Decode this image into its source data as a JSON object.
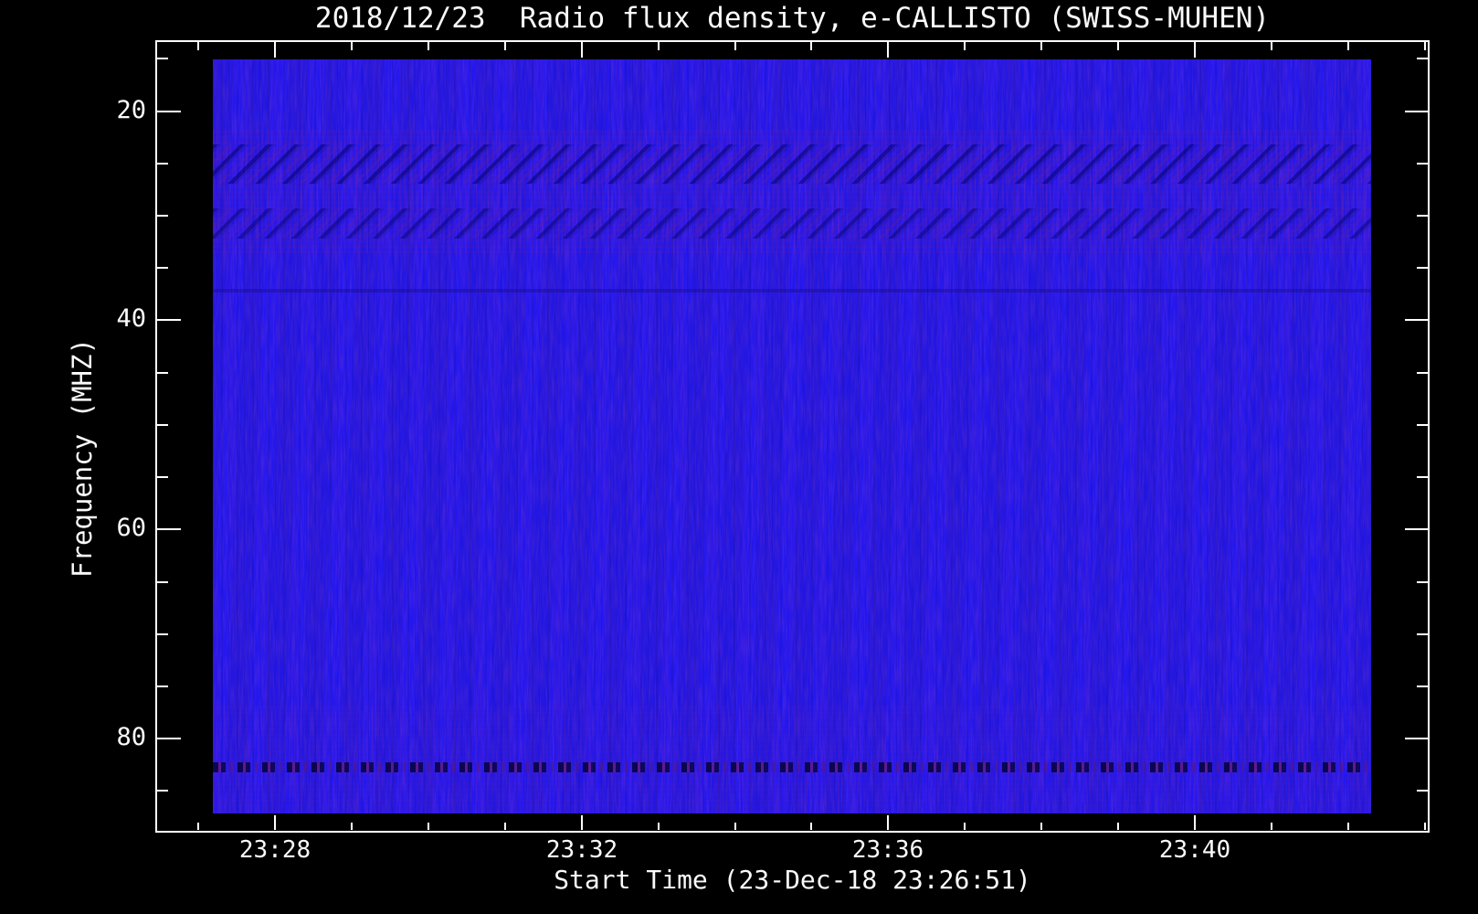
{
  "page": {
    "background": "#000000"
  },
  "chart_data": {
    "type": "heatmap",
    "subtype": "radio-spectrogram",
    "title": "2018/12/23  Radio flux density, e-CALLISTO (SWISS-MUHEN)",
    "xlabel": "Start Time (23-Dec-18 23:26:51)",
    "ylabel": "Frequency (MHZ)",
    "grid": false,
    "legend": "none",
    "x_axis": {
      "label": "Start Time (23-Dec-18 23:26:51)",
      "major_tick_labels": [
        "23:28",
        "23:32",
        "23:36",
        "23:40"
      ],
      "major_tick_minutes": [
        28,
        32,
        36,
        40
      ],
      "minor_tick_step_minutes": 1,
      "range_minutes": [
        26.45,
        43.05
      ]
    },
    "y_axis": {
      "label": "Frequency (MHZ)",
      "major_ticks": [
        20,
        40,
        60,
        80
      ],
      "minor_tick_step": 5,
      "range_mhz": [
        13.3,
        88.9
      ],
      "direction": "increasing-downward"
    },
    "image_extent": {
      "time_span": [
        "23:26:51",
        "23:42:20"
      ],
      "freq_span_mhz": [
        15.0,
        87.2
      ]
    },
    "colormap_note": "uniform bright blue (low flux) with darker navy and purple RFI features",
    "features": [
      {
        "name": "purple-speckle-upper",
        "kind": "speckle",
        "freq_mhz": [
          21.8,
          33.6
        ],
        "opacity": 0.8,
        "desc": "purple speckled interference region around the shortwave bands"
      },
      {
        "name": "sweep-rfi-band-1",
        "kind": "stripes",
        "freq_mhz": [
          23.2,
          27.0
        ],
        "opacity": 1,
        "desc": "diagonal sweeping RFI stripes, repeating about every 21 px"
      },
      {
        "name": "sweep-rfi-band-2",
        "kind": "stripes",
        "freq_mhz": [
          29.3,
          32.2
        ],
        "opacity": 0.85,
        "desc": "second band of diagonal sweeping RFI stripes"
      },
      {
        "name": "faint-rfi-line-37mhz",
        "kind": "faint-line",
        "freq_mhz": [
          37.0,
          37.35
        ],
        "opacity": 1,
        "desc": "very faint dark horizontal line"
      },
      {
        "name": "purple-speckle-lower",
        "kind": "speckle",
        "freq_mhz": [
          76.8,
          87.0
        ],
        "opacity": 0.45,
        "desc": "light purple speckle noise near the bottom of the band"
      },
      {
        "name": "rfi-dashed-line-83mhz",
        "kind": "dashes",
        "freq_mhz": [
          82.3,
          83.3
        ],
        "opacity": 1,
        "desc": "narrowband dashed dark/maroon RFI line"
      }
    ]
  },
  "colors": {
    "background": "#000000",
    "axis": "#ffffff",
    "text": "#fafafa",
    "spectrogram_base": "#2317f0",
    "stripe_dark": "#0804a8",
    "speckle_purple": "#8c23a0",
    "rfi_dashed_dark": "#080446",
    "rfi_dashed_maroon": "#82195b"
  }
}
